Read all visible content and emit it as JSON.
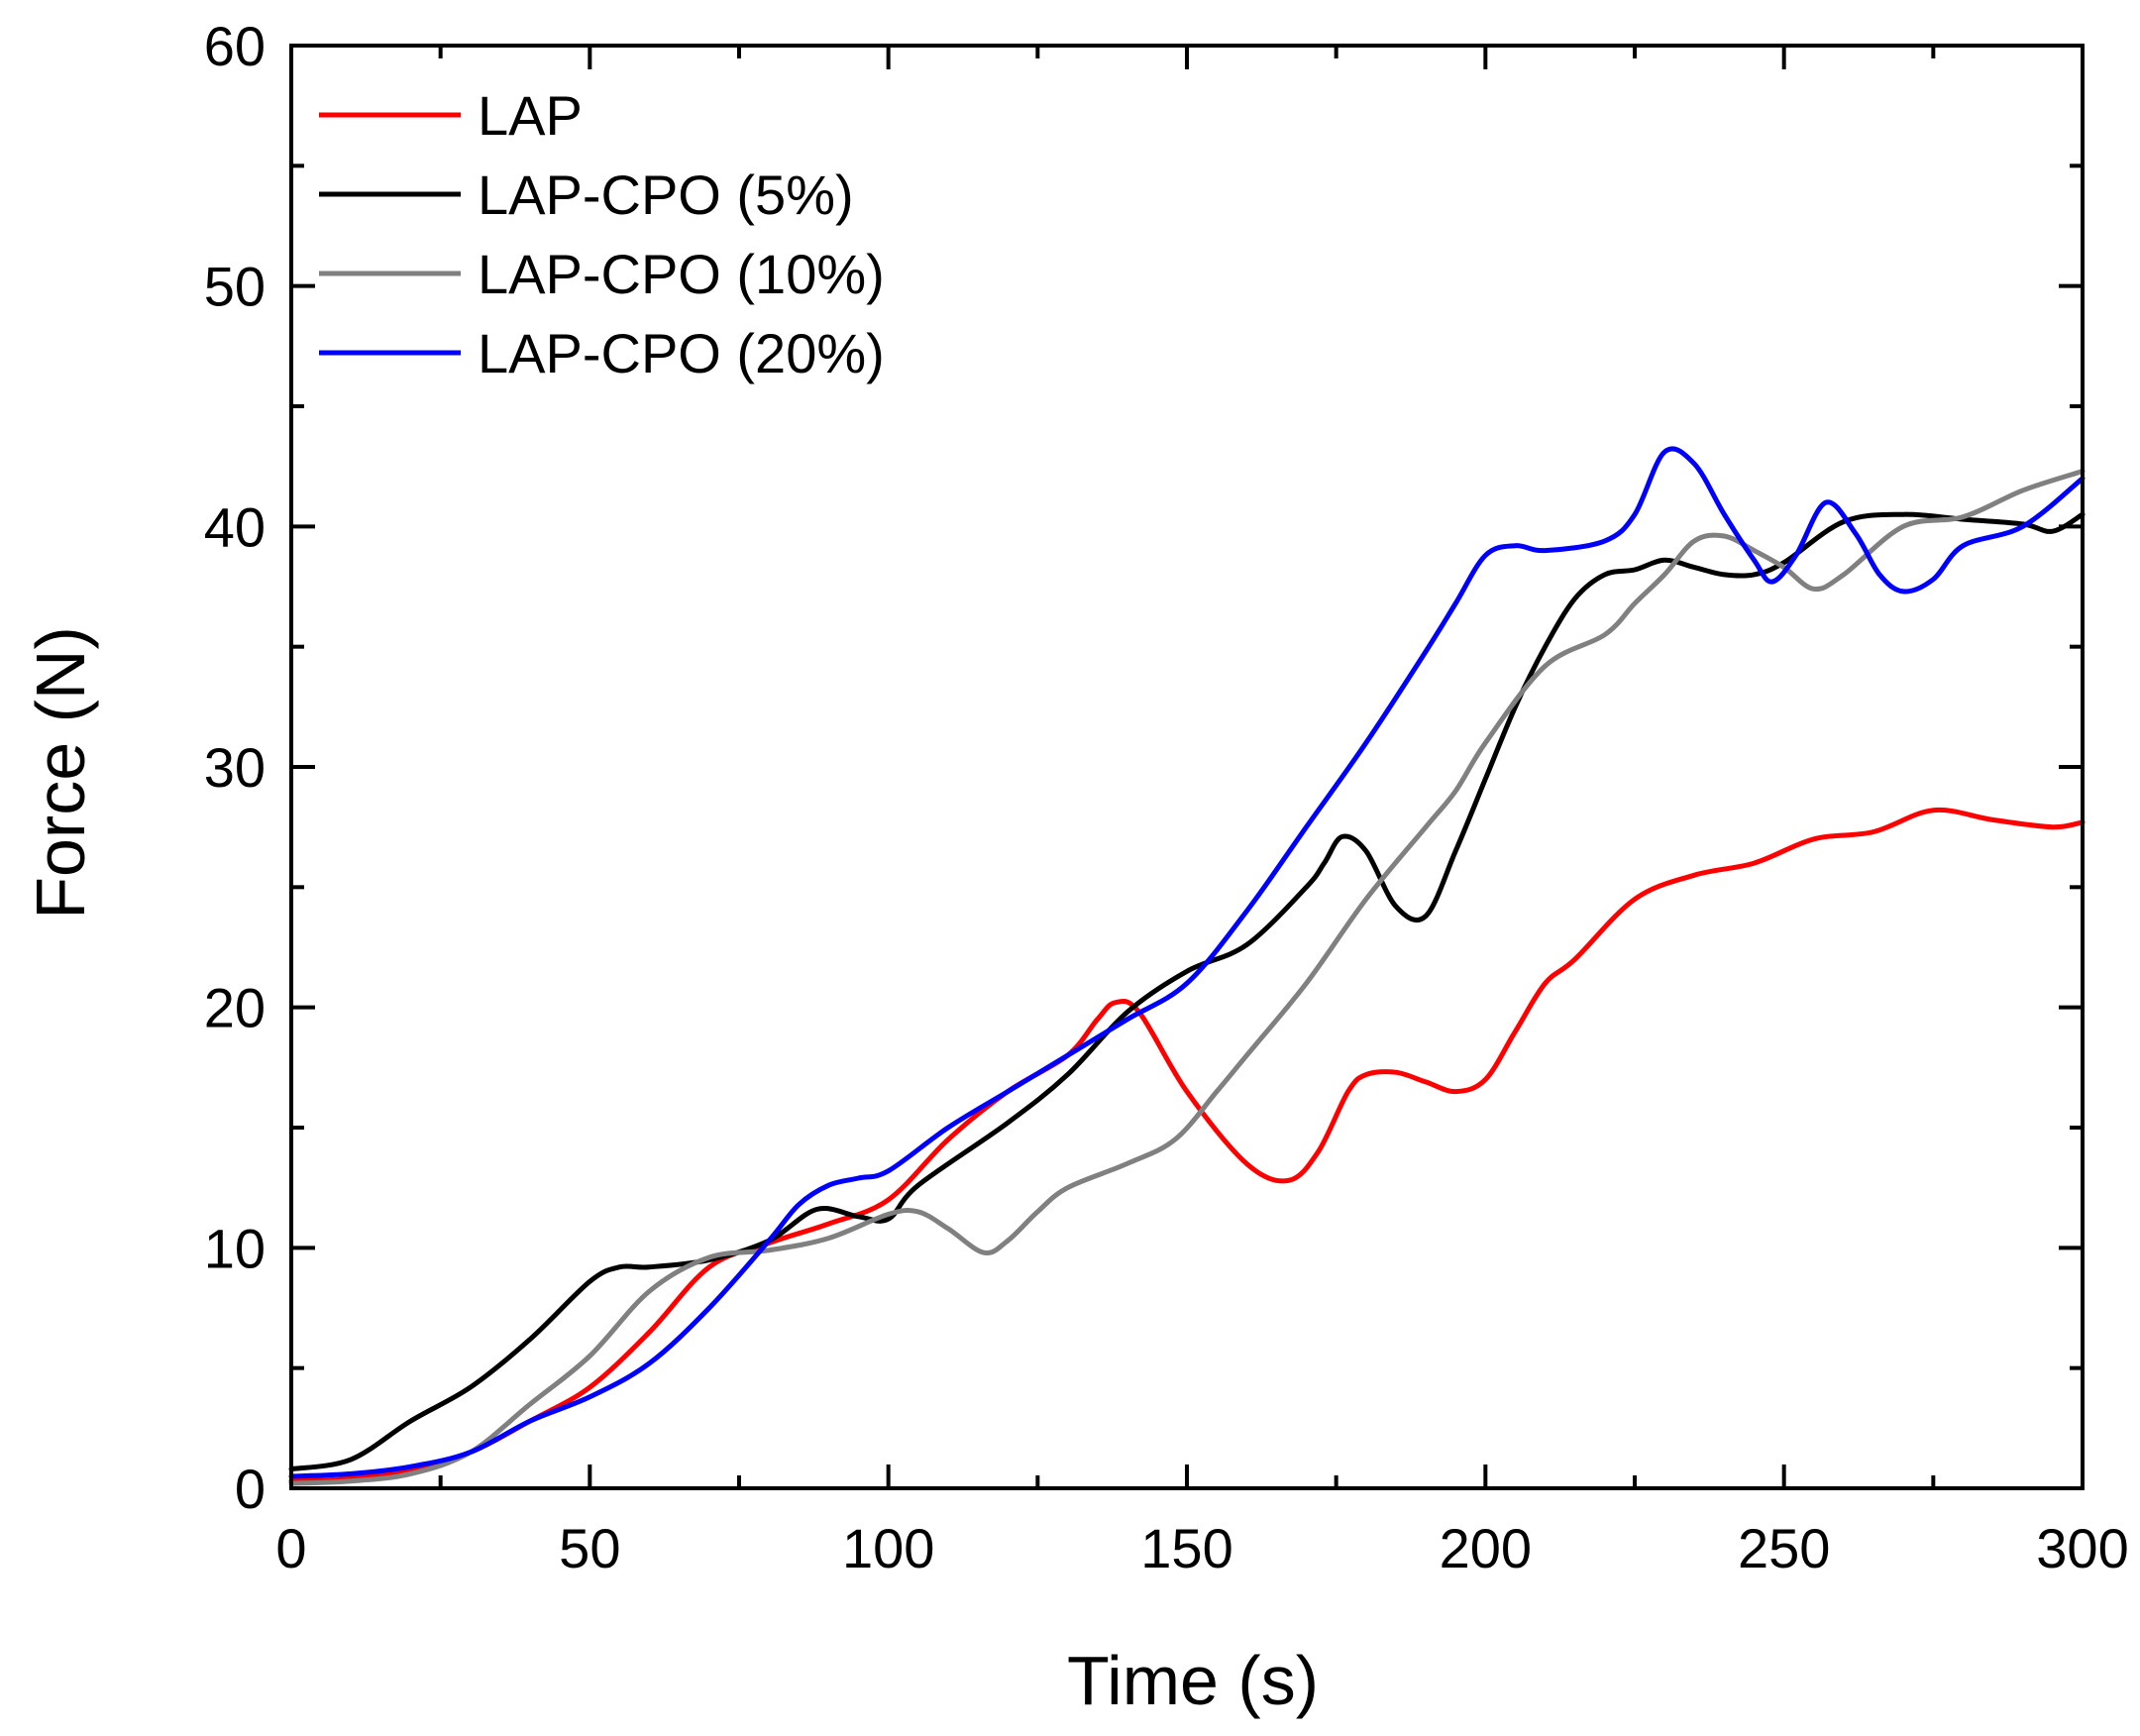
{
  "chart_data": {
    "type": "line",
    "xlabel": "Time (s)",
    "ylabel": "Force (N)",
    "xlim": [
      0,
      300
    ],
    "ylim": [
      0,
      60
    ],
    "xticks": [
      0,
      50,
      100,
      150,
      200,
      250,
      300
    ],
    "yticks": [
      0,
      10,
      20,
      30,
      40,
      50,
      60
    ],
    "grid": false,
    "legend_position": "top-left",
    "series": [
      {
        "name": "LAP",
        "color": "#ff0000",
        "x": [
          0,
          10,
          20,
          30,
          40,
          50,
          60,
          70,
          80,
          90,
          100,
          110,
          120,
          130,
          135,
          138,
          142,
          150,
          160,
          167,
          172,
          177,
          180,
          185,
          190,
          195,
          200,
          205,
          210,
          215,
          225,
          235,
          245,
          255,
          265,
          275,
          285,
          295,
          300
        ],
        "y": [
          0.3,
          0.4,
          0.8,
          1.5,
          2.8,
          4.2,
          6.5,
          9.2,
          10.2,
          11.0,
          12.0,
          14.5,
          16.5,
          18.0,
          19.5,
          20.2,
          19.8,
          16.5,
          13.5,
          12.8,
          14.0,
          16.5,
          17.2,
          17.3,
          16.9,
          16.5,
          17.0,
          19.0,
          21.0,
          22.0,
          24.5,
          25.5,
          26.0,
          27.0,
          27.3,
          28.2,
          27.8,
          27.5,
          27.7
        ]
      },
      {
        "name": "LAP-CPO (5%)",
        "color": "#000000",
        "x": [
          0,
          10,
          20,
          30,
          40,
          50,
          55,
          60,
          70,
          80,
          88,
          95,
          100,
          105,
          120,
          130,
          140,
          150,
          160,
          170,
          173,
          176,
          180,
          185,
          190,
          195,
          200,
          205,
          210,
          215,
          220,
          225,
          230,
          235,
          240,
          245,
          250,
          260,
          270,
          280,
          290,
          295,
          300
        ],
        "y": [
          0.8,
          1.2,
          2.8,
          4.2,
          6.2,
          8.6,
          9.2,
          9.2,
          9.5,
          10.3,
          11.6,
          11.3,
          11.2,
          12.6,
          15.2,
          17.2,
          19.8,
          21.5,
          22.6,
          25.0,
          26.0,
          27.1,
          26.5,
          24.2,
          23.8,
          26.5,
          29.5,
          32.5,
          35.0,
          37.0,
          38.0,
          38.2,
          38.6,
          38.3,
          38.0,
          38.0,
          38.5,
          40.2,
          40.5,
          40.3,
          40.1,
          39.8,
          40.5
        ]
      },
      {
        "name": "LAP-CPO (10%)",
        "color": "#808080",
        "x": [
          0,
          10,
          20,
          30,
          40,
          50,
          60,
          70,
          80,
          90,
          100,
          105,
          110,
          116,
          120,
          125,
          130,
          140,
          148,
          155,
          160,
          170,
          180,
          190,
          195,
          200,
          210,
          220,
          225,
          230,
          235,
          240,
          245,
          250,
          255,
          260,
          270,
          280,
          290,
          300
        ],
        "y": [
          0.2,
          0.3,
          0.6,
          1.5,
          3.5,
          5.5,
          8.2,
          9.6,
          9.9,
          10.4,
          11.4,
          11.5,
          10.8,
          9.8,
          10.3,
          11.5,
          12.5,
          13.5,
          14.5,
          16.5,
          18.0,
          21.0,
          24.5,
          27.5,
          29.0,
          31.0,
          34.2,
          35.5,
          36.8,
          38.0,
          39.4,
          39.6,
          39.0,
          38.3,
          37.4,
          38.0,
          40.0,
          40.4,
          41.5,
          42.3
        ]
      },
      {
        "name": "LAP-CPO (20%)",
        "color": "#0000ff",
        "x": [
          0,
          10,
          20,
          30,
          40,
          50,
          60,
          70,
          80,
          85,
          90,
          95,
          100,
          110,
          120,
          130,
          140,
          150,
          160,
          170,
          180,
          190,
          195,
          200,
          205,
          210,
          220,
          225,
          230,
          235,
          240,
          245,
          248,
          252,
          257,
          262,
          266,
          270,
          275,
          280,
          290,
          300
        ],
        "y": [
          0.5,
          0.6,
          0.9,
          1.5,
          2.8,
          3.8,
          5.2,
          7.5,
          10.3,
          11.8,
          12.6,
          12.9,
          13.2,
          15.0,
          16.5,
          18.0,
          19.5,
          21.0,
          24.0,
          27.5,
          31.0,
          34.8,
          36.8,
          38.8,
          39.2,
          39.0,
          39.4,
          40.5,
          43.1,
          42.6,
          40.5,
          38.6,
          37.7,
          38.8,
          41.0,
          39.7,
          38.0,
          37.3,
          37.8,
          39.2,
          40.0,
          42.0
        ]
      }
    ]
  }
}
